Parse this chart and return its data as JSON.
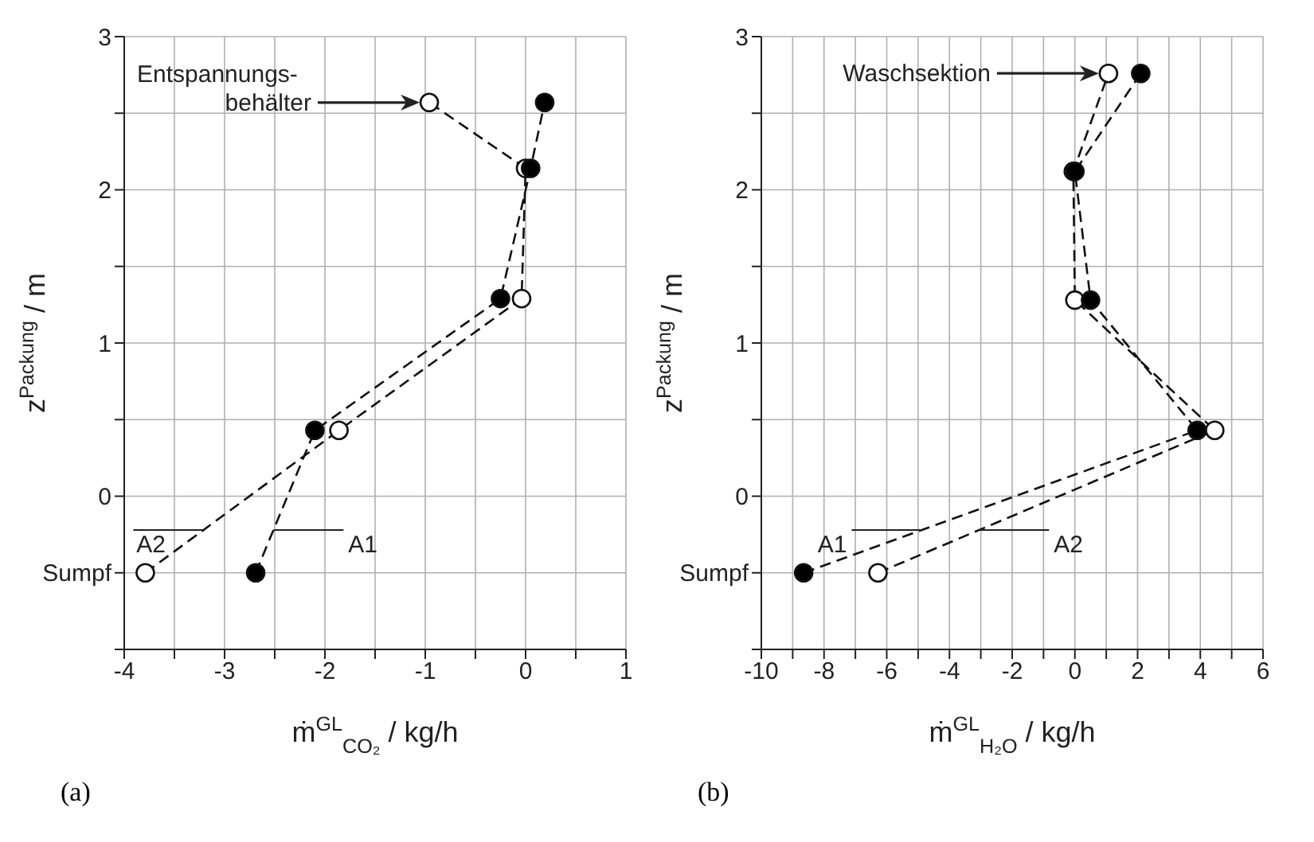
{
  "chart_data": [
    {
      "type": "line",
      "xlabel": "ṁ$^{GL}$$_{CO₂}$ / kg/h",
      "ylabel": "z$^{Packung}$ / m",
      "grid": true,
      "marker": "circle",
      "line_style": "dashed",
      "xlim": [
        -4,
        1
      ],
      "xticks": [
        -4,
        {
          "value": -3.5,
          "label": null
        },
        -3,
        {
          "value": -2.5,
          "label": null
        },
        -2,
        {
          "value": -1.5,
          "label": null
        },
        -1,
        {
          "value": -0.5,
          "label": null
        },
        0,
        {
          "value": 0.5,
          "label": null
        },
        1
      ],
      "ylim": [
        -1,
        3
      ],
      "yticks": [
        {
          "value": -1,
          "label": null
        },
        {
          "value": -0.5,
          "label": "Sumpf"
        },
        0,
        {
          "value": 0.5,
          "label": null
        },
        1,
        {
          "value": 1.5,
          "label": null
        },
        2,
        {
          "value": 2.5,
          "label": null
        },
        3
      ],
      "series": [
        {
          "name": "A1",
          "color": "#000000",
          "x": [
            -2.69,
            -2.1,
            -0.25,
            0.05,
            0.19
          ],
          "values": [
            -0.5,
            0.43,
            1.29,
            2.14,
            2.57
          ]
        },
        {
          "name": "A2",
          "color": "#ffffff",
          "x": [
            -3.79,
            -1.86,
            -0.04,
            0.0,
            -0.96
          ],
          "values": [
            -0.5,
            0.43,
            1.29,
            2.14,
            2.57
          ]
        }
      ],
      "title": "(a)",
      "annotations": [
        "Entspannungs-\nbehälter"
      ]
    },
    {
      "type": "line",
      "xlabel": "ṁ$^{GL}$$_{H₂O}$ / kg/h",
      "ylabel": "z$^{Packung}$ / m",
      "grid": true,
      "marker": "circle",
      "line_style": "dashed",
      "xlim": [
        -10,
        6
      ],
      "xticks": [
        -10,
        {
          "value": -9,
          "label": null
        },
        -8,
        {
          "value": -7,
          "label": null
        },
        -6,
        {
          "value": -5,
          "label": null
        },
        -4,
        {
          "value": -3,
          "label": null
        },
        -2,
        {
          "value": -1,
          "label": null
        },
        0,
        {
          "value": 1,
          "label": null
        },
        2,
        {
          "value": 3,
          "label": null
        },
        4,
        {
          "value": 5,
          "label": null
        },
        6
      ],
      "ylim": [
        -1,
        3
      ],
      "yticks": [
        {
          "value": -1,
          "label": null
        },
        {
          "value": -0.5,
          "label": "Sumpf"
        },
        0,
        {
          "value": 0.5,
          "label": null
        },
        1,
        {
          "value": 1.5,
          "label": null
        },
        2,
        {
          "value": 2.5,
          "label": null
        },
        3
      ],
      "series": [
        {
          "name": "A1",
          "color": "#000000",
          "x": [
            -8.65,
            3.9,
            0.5,
            0.0,
            2.1
          ],
          "values": [
            -0.5,
            0.43,
            1.28,
            2.12,
            2.76
          ]
        },
        {
          "name": "A2",
          "color": "#ffffff",
          "x": [
            -6.28,
            4.46,
            0.0,
            -0.05,
            1.07
          ],
          "values": [
            -0.5,
            0.43,
            1.28,
            2.12,
            2.76
          ]
        }
      ],
      "title": "(b)",
      "annotations": [
        "Waschsektion"
      ]
    }
  ]
}
